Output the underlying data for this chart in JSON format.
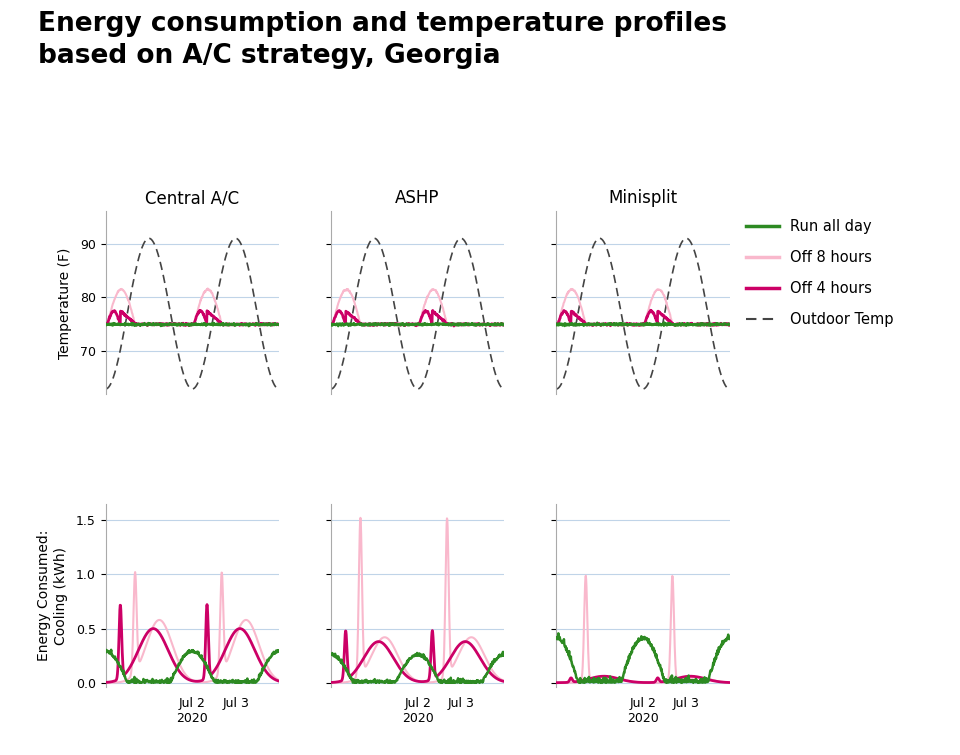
{
  "title": "Energy consumption and temperature profiles\nbased on A/C strategy, Georgia",
  "title_fontsize": 19,
  "title_fontweight": "bold",
  "col_titles": [
    "Central A/C",
    "ASHP",
    "Minisplit"
  ],
  "col_title_fontsize": 12,
  "temp_ylim": [
    62,
    96
  ],
  "temp_yticks": [
    70,
    80,
    90
  ],
  "energy_ylim": [
    -0.04,
    1.65
  ],
  "energy_yticks": [
    0,
    0.5,
    1,
    1.5
  ],
  "ylabel_temp": "Temperature (F)",
  "ylabel_energy": "Energy Consumed:\nCooling (kWh)",
  "legend_labels": [
    "Run all day",
    "Off 8 hours",
    "Off 4 hours",
    "Outdoor Temp"
  ],
  "colors": {
    "run_all_day": "#2d8a22",
    "off_8h": "#f9b8cc",
    "off_4h": "#cc0066",
    "outdoor": "#444444"
  },
  "background_color": "#ffffff",
  "grid_color": "#c0d4e8",
  "n_points": 500
}
